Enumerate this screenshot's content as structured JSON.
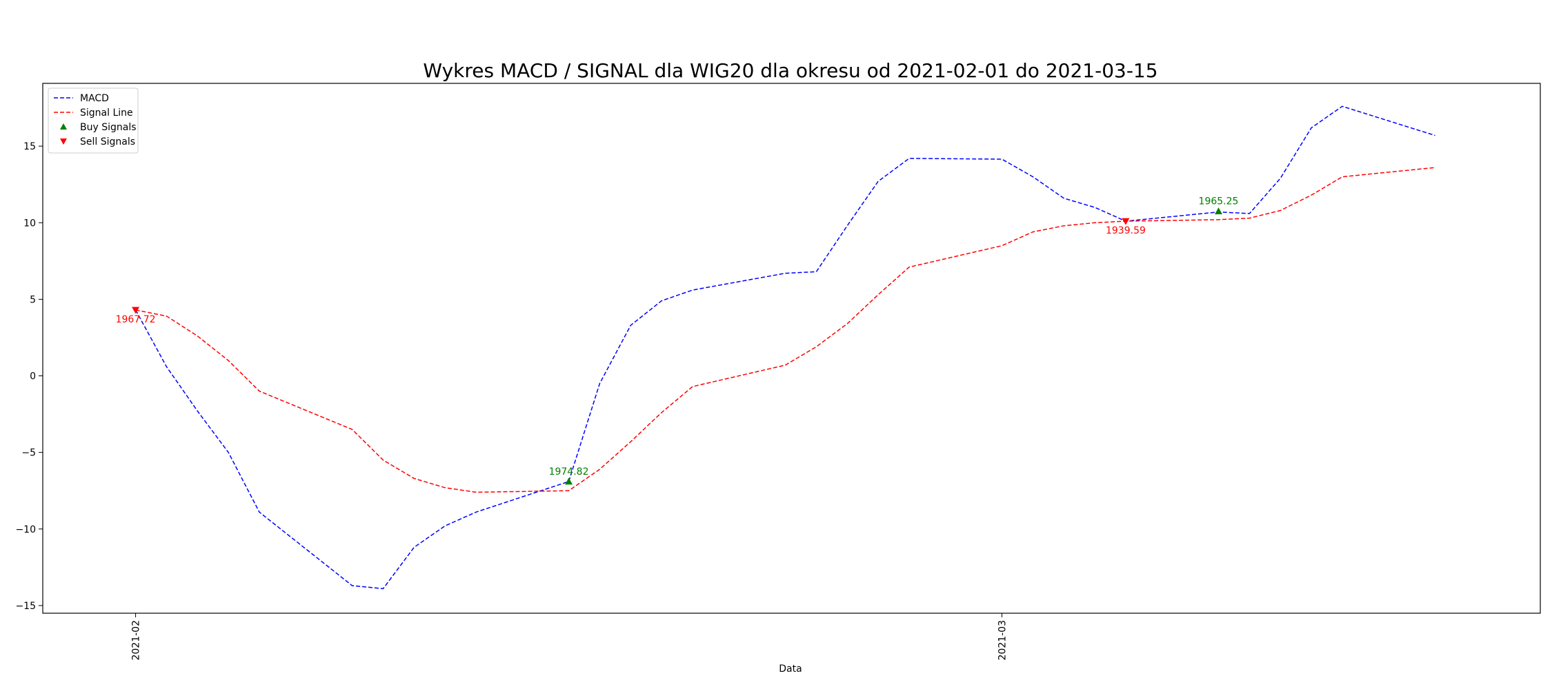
{
  "chart_data": {
    "type": "line",
    "title": "Wykres MACD / SIGNAL dla WIG20 dla okresu od 2021-02-01 do 2021-03-15",
    "xlabel": "Data",
    "ylabel": "",
    "x": [
      "2021-02-01",
      "2021-02-02",
      "2021-02-03",
      "2021-02-04",
      "2021-02-05",
      "2021-02-08",
      "2021-02-09",
      "2021-02-10",
      "2021-02-11",
      "2021-02-12",
      "2021-02-15",
      "2021-02-16",
      "2021-02-17",
      "2021-02-18",
      "2021-02-19",
      "2021-02-22",
      "2021-02-23",
      "2021-02-24",
      "2021-02-25",
      "2021-02-26",
      "2021-03-01",
      "2021-03-02",
      "2021-03-03",
      "2021-03-04",
      "2021-03-05",
      "2021-03-08",
      "2021-03-09",
      "2021-03-10",
      "2021-03-11",
      "2021-03-12",
      "2021-03-15"
    ],
    "xlim": [
      "2021-01-29",
      "2021-03-18.4"
    ],
    "ylim": [
      -15.5,
      19.1
    ],
    "xticks": [
      "2021-02",
      "2021-03"
    ],
    "yticks": [
      -15,
      -10,
      -5,
      0,
      5,
      10,
      15
    ],
    "series": [
      {
        "name": "MACD",
        "color": "#0000ff",
        "values": [
          4.3,
          0.6,
          -2.3,
          -5.0,
          -8.9,
          -13.7,
          -13.9,
          -11.2,
          -9.8,
          -8.9,
          -6.9,
          -0.5,
          3.3,
          4.9,
          5.6,
          6.7,
          6.8,
          9.8,
          12.7,
          14.2,
          14.15,
          13.0,
          11.6,
          11.0,
          10.1,
          10.7,
          10.6,
          12.9,
          16.2,
          17.6,
          15.7
        ]
      },
      {
        "name": "Signal Line",
        "color": "#ff0000",
        "values": [
          4.3,
          3.9,
          2.6,
          1.0,
          -1.0,
          -3.5,
          -5.5,
          -6.7,
          -7.3,
          -7.6,
          -7.5,
          -6.1,
          -4.3,
          -2.4,
          -0.7,
          0.7,
          1.9,
          3.4,
          5.3,
          7.1,
          8.5,
          9.4,
          9.8,
          10.0,
          10.1,
          10.2,
          10.3,
          10.8,
          11.8,
          13.0,
          13.6
        ]
      }
    ],
    "buy_signals": {
      "name": "Buy Signals",
      "color": "#008000",
      "points": [
        {
          "x": "2021-02-15",
          "y": -6.9,
          "label": "1974.82"
        },
        {
          "x": "2021-03-08",
          "y": 10.75,
          "label": "1965.25"
        }
      ]
    },
    "sell_signals": {
      "name": "Sell Signals",
      "color": "#ff0000",
      "points": [
        {
          "x": "2021-02-01",
          "y": 4.3,
          "label": "1967.72"
        },
        {
          "x": "2021-03-05",
          "y": 10.1,
          "label": "1939.59"
        }
      ]
    },
    "legend": {
      "placement": "top-left",
      "entries": [
        "MACD",
        "Signal Line",
        "Buy Signals",
        "Sell Signals"
      ]
    },
    "grid": false
  }
}
